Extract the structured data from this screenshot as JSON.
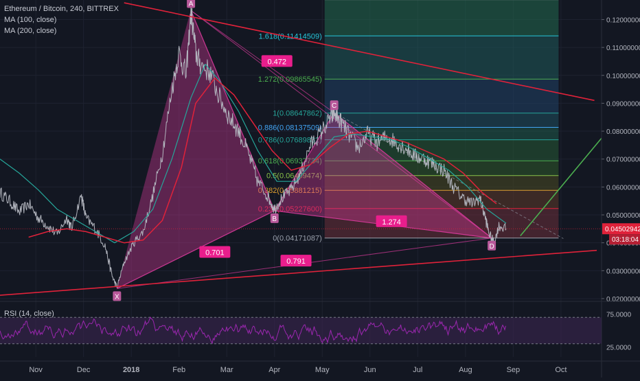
{
  "chart_data": {
    "type": "line",
    "symbol": "Ethereum / Bitcoin, 240, BITTREX",
    "indicators": [
      "MA (100, close)",
      "MA (200, close)"
    ],
    "price_axis": {
      "ticks": [
        0.12,
        0.11,
        0.1,
        0.09,
        0.08,
        0.07,
        0.06,
        0.05,
        0.04,
        0.03,
        0.02
      ],
      "tick_labels": [
        "0.12000000",
        "0.11000000",
        "0.10000000",
        "0.09000000",
        "0.08000000",
        "0.07000000",
        "0.06000000",
        "0.05000000",
        "0.04000000",
        "0.03000000",
        "0.02000000"
      ],
      "last_price": 0.04502942,
      "last_price_label": "0.04502942",
      "countdown_label": "03:18:04",
      "ylim": [
        0.0195,
        0.127
      ]
    },
    "time_axis": {
      "labels": [
        "Nov",
        "Dec",
        "2018",
        "Feb",
        "Mar",
        "Apr",
        "May",
        "Jun",
        "Jul",
        "Aug",
        "Sep",
        "Oct"
      ],
      "xlim": [
        0,
        12.6
      ]
    },
    "price_series": [
      [
        0.0,
        0.058
      ],
      [
        0.2,
        0.055
      ],
      [
        0.4,
        0.051
      ],
      [
        0.6,
        0.054
      ],
      [
        0.8,
        0.049
      ],
      [
        1.0,
        0.046
      ],
      [
        1.2,
        0.043
      ],
      [
        1.4,
        0.049
      ],
      [
        1.5,
        0.045
      ],
      [
        1.7,
        0.057
      ],
      [
        1.8,
        0.049
      ],
      [
        2.0,
        0.045
      ],
      [
        2.2,
        0.039
      ],
      [
        2.35,
        0.028
      ],
      [
        2.45,
        0.024
      ],
      [
        2.6,
        0.033
      ],
      [
        2.8,
        0.04
      ],
      [
        3.0,
        0.044
      ],
      [
        3.2,
        0.057
      ],
      [
        3.4,
        0.072
      ],
      [
        3.6,
        0.095
      ],
      [
        3.75,
        0.108
      ],
      [
        3.9,
        0.1
      ],
      [
        4.0,
        0.123
      ],
      [
        4.1,
        0.108
      ],
      [
        4.2,
        0.104
      ],
      [
        4.4,
        0.101
      ],
      [
        4.6,
        0.092
      ],
      [
        4.8,
        0.085
      ],
      [
        5.0,
        0.08
      ],
      [
        5.2,
        0.072
      ],
      [
        5.4,
        0.062
      ],
      [
        5.6,
        0.057
      ],
      [
        5.75,
        0.052
      ],
      [
        5.9,
        0.056
      ],
      [
        6.1,
        0.059
      ],
      [
        6.3,
        0.065
      ],
      [
        6.5,
        0.075
      ],
      [
        6.7,
        0.079
      ],
      [
        6.9,
        0.084
      ],
      [
        7.0,
        0.0865
      ],
      [
        7.15,
        0.083
      ],
      [
        7.3,
        0.079
      ],
      [
        7.5,
        0.074
      ],
      [
        7.7,
        0.079
      ],
      [
        7.9,
        0.076
      ],
      [
        8.1,
        0.078
      ],
      [
        8.3,
        0.076
      ],
      [
        8.5,
        0.074
      ],
      [
        8.7,
        0.071
      ],
      [
        8.9,
        0.07
      ],
      [
        9.1,
        0.068
      ],
      [
        9.3,
        0.066
      ],
      [
        9.5,
        0.06
      ],
      [
        9.7,
        0.056
      ],
      [
        9.9,
        0.054
      ],
      [
        10.05,
        0.056
      ],
      [
        10.15,
        0.05
      ],
      [
        10.25,
        0.043
      ],
      [
        10.35,
        0.04
      ],
      [
        10.45,
        0.046
      ],
      [
        10.6,
        0.045
      ]
    ],
    "ma100_series": [
      [
        0.0,
        0.07
      ],
      [
        0.4,
        0.065
      ],
      [
        0.8,
        0.059
      ],
      [
        1.2,
        0.052
      ],
      [
        1.6,
        0.048
      ],
      [
        2.0,
        0.044
      ],
      [
        2.4,
        0.04
      ],
      [
        2.8,
        0.044
      ],
      [
        3.2,
        0.052
      ],
      [
        3.6,
        0.07
      ],
      [
        4.0,
        0.092
      ],
      [
        4.3,
        0.104
      ],
      [
        4.6,
        0.098
      ],
      [
        5.0,
        0.087
      ],
      [
        5.4,
        0.073
      ],
      [
        5.8,
        0.062
      ],
      [
        6.2,
        0.062
      ],
      [
        6.6,
        0.07
      ],
      [
        7.0,
        0.078
      ],
      [
        7.4,
        0.079
      ],
      [
        7.8,
        0.078
      ],
      [
        8.2,
        0.077
      ],
      [
        8.6,
        0.074
      ],
      [
        9.0,
        0.07
      ],
      [
        9.4,
        0.066
      ],
      [
        9.8,
        0.06
      ],
      [
        10.2,
        0.052
      ],
      [
        10.6,
        0.047
      ]
    ],
    "ma200_series": [
      [
        0.6,
        0.042
      ],
      [
        1.0,
        0.044
      ],
      [
        1.4,
        0.045
      ],
      [
        1.8,
        0.044
      ],
      [
        2.2,
        0.042
      ],
      [
        2.6,
        0.04
      ],
      [
        3.0,
        0.041
      ],
      [
        3.4,
        0.048
      ],
      [
        3.8,
        0.067
      ],
      [
        4.1,
        0.09
      ],
      [
        4.5,
        0.099
      ],
      [
        4.9,
        0.093
      ],
      [
        5.3,
        0.083
      ],
      [
        5.7,
        0.073
      ],
      [
        6.1,
        0.066
      ],
      [
        6.5,
        0.068
      ],
      [
        6.9,
        0.074
      ],
      [
        7.3,
        0.079
      ],
      [
        7.7,
        0.08
      ],
      [
        8.1,
        0.078
      ],
      [
        8.5,
        0.076
      ],
      [
        8.9,
        0.073
      ],
      [
        9.3,
        0.07
      ],
      [
        9.7,
        0.065
      ],
      [
        10.1,
        0.058
      ],
      [
        10.4,
        0.054
      ]
    ],
    "harmonic_points": [
      {
        "label": "X",
        "t": 2.45,
        "price": 0.0236
      },
      {
        "label": "A",
        "t": 4.0,
        "price": 0.1232
      },
      {
        "label": "B",
        "t": 5.75,
        "price": 0.0515
      },
      {
        "label": "C",
        "t": 7.0,
        "price": 0.0866
      },
      {
        "label": "D",
        "t": 10.3,
        "price": 0.0417
      }
    ],
    "harmonic_ratios": [
      {
        "label": "0.701",
        "t": 4.5,
        "price": 0.0366
      },
      {
        "label": "0.472",
        "t": 5.8,
        "price": 0.105
      },
      {
        "label": "0.791",
        "t": 6.2,
        "price": 0.0335
      },
      {
        "label": "1.274",
        "t": 8.2,
        "price": 0.0476
      }
    ],
    "fib_levels": [
      {
        "ratio": 0,
        "price": 0.04171087,
        "label": "0(0.04171087)"
      },
      {
        "ratio": 0.236,
        "price": 0.052276,
        "label": "0.236(0.05227600)"
      },
      {
        "ratio": 0.382,
        "price": 0.05881215,
        "label": "0.382(0.05881215)"
      },
      {
        "ratio": 0.5,
        "price": 0.06409474,
        "label": "0.5(0.06409474)"
      },
      {
        "ratio": 0.618,
        "price": 0.06937734,
        "label": "0.618(0.06937734)"
      },
      {
        "ratio": 0.786,
        "price": 0.07689832,
        "label": "0.786(0.07689832)"
      },
      {
        "ratio": 0.886,
        "price": 0.08137509,
        "label": "0.886(0.08137509)"
      },
      {
        "ratio": 1,
        "price": 0.08647862,
        "label": "1(0.08647862)"
      },
      {
        "ratio": 1.272,
        "price": 0.09865545,
        "label": "1.272(0.09865545)"
      },
      {
        "ratio": 1.618,
        "price": 0.11414509,
        "label": "1.618(0.11414509)"
      },
      {
        "ratio": 2.0,
        "price": 0.1271,
        "label": ""
      }
    ],
    "fib_range_t": [
      6.8,
      11.7
    ],
    "trend_lines": [
      {
        "name": "upper-trendline",
        "from": [
          2.6,
          0.126
        ],
        "to": [
          12.45,
          0.091
        ],
        "color": "#e0223a"
      },
      {
        "name": "lower-trendline",
        "from": [
          0.0,
          0.0212
        ],
        "to": [
          12.5,
          0.0373
        ],
        "color": "#e0223a"
      },
      {
        "name": "projection-line",
        "from": [
          10.9,
          0.0425
        ],
        "to": [
          12.6,
          0.0775
        ],
        "color": "#4caf50"
      }
    ],
    "rsi": {
      "label": "RSI (14, close)",
      "levels": [
        70,
        30
      ],
      "ticks": [
        75,
        25
      ],
      "tick_labels": [
        "75.0000",
        "25.0000"
      ],
      "ylim": [
        10,
        90
      ],
      "series_seed": 7
    },
    "colors": {
      "background": "#131722",
      "price": "#b2b5be",
      "ma100": "#26a69a",
      "ma200": "#e0223a",
      "pattern_fill": "#d63a9a",
      "pattern_label_bg": "#e91e8c",
      "point_label_bg": "#b8589a",
      "rsi_line": "#9c27b0",
      "rsi_band": "#3a2450",
      "last_price_bg": "#e0223a",
      "countdown_bg": "#b41f33"
    }
  }
}
